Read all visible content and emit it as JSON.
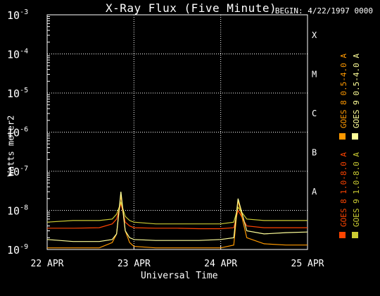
{
  "chart_data": {
    "type": "line",
    "title": "X-Ray Flux (Five Minute)",
    "subtitle": "BEGIN: 4/22/1997 0000",
    "ylabel": "Watts meter2",
    "xlabel": "Universal Time",
    "yscale": "log",
    "ylim": [
      1e-09,
      0.001
    ],
    "y_ticks": [
      {
        "exp": -9,
        "label": "10",
        "sup": "-9"
      },
      {
        "exp": -8,
        "label": "10",
        "sup": "-8"
      },
      {
        "exp": -7,
        "label": "10",
        "sup": "-7"
      },
      {
        "exp": -6,
        "label": "10",
        "sup": "-6"
      },
      {
        "exp": -5,
        "label": "10",
        "sup": "-5"
      },
      {
        "exp": -4,
        "label": "10",
        "sup": "-4"
      },
      {
        "exp": -3,
        "label": "10",
        "sup": "-3"
      }
    ],
    "x_ticks": [
      "22 APR",
      "23 APR",
      "24 APR",
      "25 APR"
    ],
    "class_labels": [
      {
        "label": "A",
        "exp": -8
      },
      {
        "label": "B",
        "exp": -7
      },
      {
        "label": "C",
        "exp": -6
      },
      {
        "label": "M",
        "exp": -5
      },
      {
        "label": "X",
        "exp": -4
      }
    ],
    "grid": true,
    "series": [
      {
        "name": "GOES 8 1.0-8.0 A",
        "color": "#ff4400",
        "x_days": [
          0.0,
          0.3,
          0.6,
          0.75,
          0.8,
          0.85,
          0.9,
          0.95,
          1.0,
          1.25,
          1.5,
          1.75,
          2.0,
          2.15,
          2.2,
          2.3,
          2.5,
          2.75,
          3.0
        ],
        "y": [
          3.5e-09,
          3.5e-09,
          3.6e-09,
          4.5e-09,
          6e-09,
          1.5e-08,
          5e-09,
          4e-09,
          3.6e-09,
          3.5e-09,
          3.5e-09,
          3.4e-09,
          3.4e-09,
          3.6e-09,
          1e-08,
          4e-09,
          3.6e-09,
          3.6e-09,
          3.6e-09
        ]
      },
      {
        "name": "GOES 8 0.5-4.0 A",
        "color": "#ff9900",
        "x_days": [
          0.0,
          0.3,
          0.6,
          0.75,
          0.8,
          0.85,
          0.9,
          0.95,
          1.0,
          1.25,
          1.5,
          1.75,
          2.0,
          2.15,
          2.2,
          2.3,
          2.5,
          2.75,
          3.0
        ],
        "y": [
          1.1e-09,
          1.1e-09,
          1.1e-09,
          1.5e-09,
          2.5e-09,
          2.5e-08,
          3e-09,
          1.5e-09,
          1.2e-09,
          1.1e-09,
          1.1e-09,
          1.1e-09,
          1.1e-09,
          1.3e-09,
          1.8e-08,
          2e-09,
          1.4e-09,
          1.3e-09,
          1.3e-09
        ]
      },
      {
        "name": "GOES 9 1.0-8.0 A",
        "color": "#cccc33",
        "x_days": [
          0.0,
          0.3,
          0.6,
          0.75,
          0.8,
          0.85,
          0.9,
          0.95,
          1.0,
          1.25,
          1.5,
          1.75,
          2.0,
          2.15,
          2.2,
          2.3,
          2.5,
          2.75,
          3.0
        ],
        "y": [
          5e-09,
          5.5e-09,
          5.5e-09,
          6e-09,
          8e-09,
          1.6e-08,
          7e-09,
          5.5e-09,
          5e-09,
          4.5e-09,
          4.5e-09,
          4.5e-09,
          4.5e-09,
          5e-09,
          1.2e-08,
          6e-09,
          5.5e-09,
          5.5e-09,
          5.5e-09
        ]
      },
      {
        "name": "GOES 9 0.5-4.0 A",
        "color": "#ffff99",
        "x_days": [
          0.0,
          0.3,
          0.6,
          0.75,
          0.8,
          0.85,
          0.9,
          0.95,
          1.0,
          1.25,
          1.5,
          1.75,
          2.0,
          2.15,
          2.2,
          2.3,
          2.5,
          2.75,
          3.0
        ],
        "y": [
          1.8e-09,
          1.6e-09,
          1.6e-09,
          1.8e-09,
          2.5e-09,
          3e-08,
          3e-09,
          2e-09,
          1.8e-09,
          1.7e-09,
          1.7e-09,
          1.7e-09,
          1.8e-09,
          2e-09,
          2e-08,
          3e-09,
          2.5e-09,
          2.7e-09,
          2.8e-09
        ]
      }
    ]
  }
}
